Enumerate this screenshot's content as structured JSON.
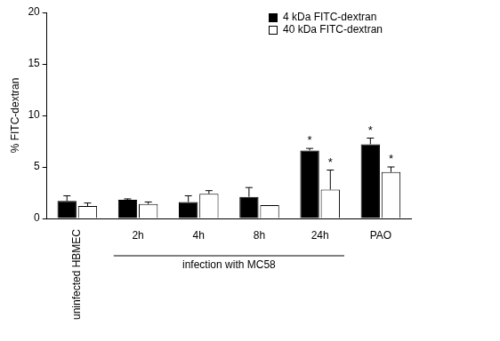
{
  "chart_data": {
    "type": "bar",
    "y_label": "% FITC-dextran",
    "categories": [
      "uninfected HBMEC",
      "2h",
      "4h",
      "8h",
      "24h",
      "PAO"
    ],
    "groups": [
      {
        "label": "infection with MC58",
        "from": "2h",
        "to": "24h"
      }
    ],
    "series": [
      {
        "name": "4 kDa FITC-dextran",
        "color": "#000000",
        "values": [
          1.7,
          1.8,
          1.6,
          2.1,
          6.6,
          7.2
        ],
        "errors": [
          0.5,
          0.1,
          0.6,
          0.9,
          0.2,
          0.6
        ],
        "annotations": [
          null,
          null,
          null,
          null,
          "*",
          "*"
        ]
      },
      {
        "name": "40 kDa FITC-dextran",
        "color": "#ffffff",
        "values": [
          1.2,
          1.4,
          2.4,
          1.3,
          2.8,
          4.5
        ],
        "errors": [
          0.3,
          0.2,
          0.3,
          null,
          1.9,
          0.5
        ],
        "annotations": [
          null,
          null,
          null,
          null,
          "*",
          "*"
        ]
      }
    ],
    "ylim": [
      0,
      20
    ],
    "yticks": [
      0,
      5,
      10,
      15,
      20
    ],
    "grid": false,
    "legend": "upper right"
  }
}
